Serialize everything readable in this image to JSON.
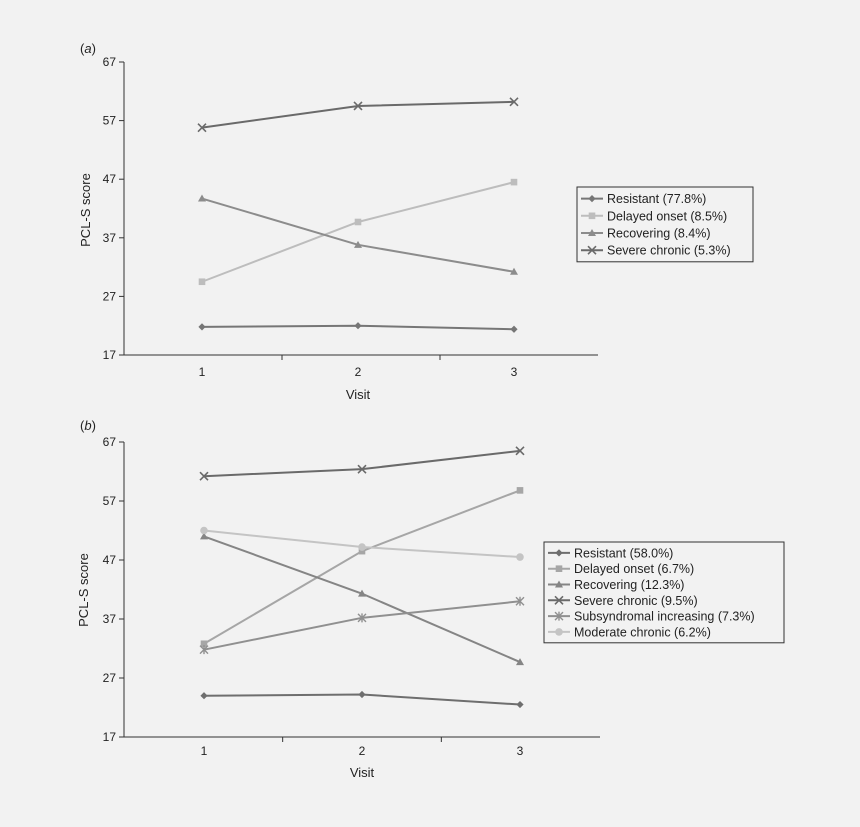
{
  "chart_data": [
    {
      "type": "line",
      "panel_label": "(a)",
      "xlabel": "Visit",
      "ylabel": "PCL-S score",
      "categories": [
        "1",
        "2",
        "3"
      ],
      "ylim": [
        17,
        67
      ],
      "yticks": [
        "17",
        "27",
        "37",
        "47",
        "57",
        "67"
      ],
      "legend_position": "right",
      "series": [
        {
          "name": "Resistant (77.8%)",
          "values": [
            21.8,
            22.0,
            21.4
          ],
          "marker": "diamond",
          "color": "#767676"
        },
        {
          "name": "Delayed onset (8.5%)",
          "values": [
            29.5,
            39.7,
            46.5
          ],
          "marker": "square",
          "color": "#bdbdbd"
        },
        {
          "name": "Recovering (8.4%)",
          "values": [
            43.7,
            35.8,
            31.2
          ],
          "marker": "triangle",
          "color": "#8c8c8c"
        },
        {
          "name": "Severe chronic (5.3%)",
          "values": [
            55.8,
            59.5,
            60.2
          ],
          "marker": "x",
          "color": "#6a6a6a"
        }
      ]
    },
    {
      "type": "line",
      "panel_label": "(b)",
      "xlabel": "Visit",
      "ylabel": "PCL-S score",
      "categories": [
        "1",
        "2",
        "3"
      ],
      "ylim": [
        17,
        67
      ],
      "yticks": [
        "17",
        "27",
        "37",
        "47",
        "57",
        "67"
      ],
      "legend_position": "right",
      "series": [
        {
          "name": "Resistant (58.0%)",
          "values": [
            24.0,
            24.2,
            22.5
          ],
          "marker": "diamond",
          "color": "#6e6e6e"
        },
        {
          "name": "Delayed onset (6.7%)",
          "values": [
            32.8,
            48.5,
            58.8
          ],
          "marker": "square",
          "color": "#a6a6a6"
        },
        {
          "name": "Recovering (12.3%)",
          "values": [
            51.0,
            41.3,
            29.7
          ],
          "marker": "triangle",
          "color": "#858585"
        },
        {
          "name": "Severe chronic (9.5%)",
          "values": [
            61.2,
            62.4,
            65.5
          ],
          "marker": "x",
          "color": "#6a6a6a"
        },
        {
          "name": "Subsyndromal increasing (7.3%)",
          "values": [
            31.8,
            37.2,
            40.0
          ],
          "marker": "asterisk",
          "color": "#909090"
        },
        {
          "name": "Moderate chronic (6.2%)",
          "values": [
            52.0,
            49.2,
            47.5
          ],
          "marker": "circle",
          "color": "#c4c4c4"
        }
      ]
    }
  ]
}
